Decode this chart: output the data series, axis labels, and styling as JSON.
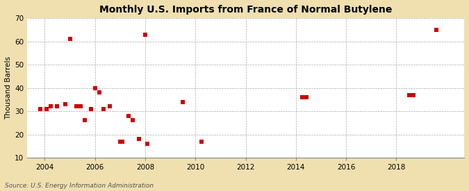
{
  "title": "Monthly U.S. Imports from France of Normal Butylene",
  "ylabel": "Thousand Barrels",
  "source": "Source: U.S. Energy Information Administration",
  "outer_bg": "#f0e0b0",
  "plot_bg": "#ffffff",
  "marker_color": "#cc0000",
  "marker_size": 14,
  "xlim": [
    2003.3,
    2020.7
  ],
  "ylim": [
    10,
    70
  ],
  "xticks": [
    2004,
    2006,
    2008,
    2010,
    2012,
    2014,
    2016,
    2018
  ],
  "yticks": [
    10,
    20,
    30,
    40,
    50,
    60,
    70
  ],
  "data_x": [
    2003.83,
    2004.08,
    2004.25,
    2004.5,
    2004.83,
    2005.0,
    2005.25,
    2005.42,
    2005.58,
    2005.83,
    2006.0,
    2006.17,
    2006.33,
    2006.58,
    2007.0,
    2007.08,
    2007.33,
    2007.5,
    2007.75,
    2008.0,
    2008.08,
    2009.5,
    2010.25,
    2014.25,
    2014.42,
    2018.5,
    2018.67,
    2019.58
  ],
  "data_y": [
    31,
    31,
    32,
    32,
    33,
    61,
    32,
    32,
    26,
    31,
    40,
    38,
    31,
    32,
    17,
    17,
    28,
    26,
    18,
    63,
    16,
    34,
    17,
    36,
    36,
    37,
    37,
    65
  ]
}
